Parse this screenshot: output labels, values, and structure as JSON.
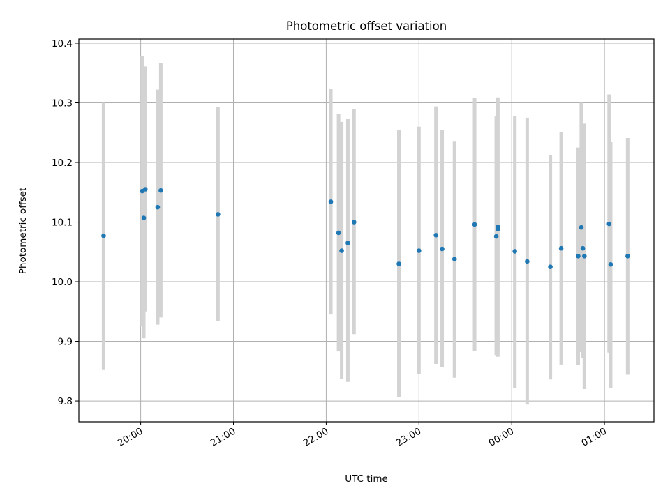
{
  "chart_data": {
    "type": "scatter",
    "title": "Photometric offset variation",
    "xlabel": "UTC time",
    "ylabel": "Photometric offset",
    "x_is_time": true,
    "x_tick_labels": [
      "20:00",
      "21:00",
      "22:00",
      "23:00",
      "00:00",
      "01:00"
    ],
    "y_tick_labels": [
      "9.8",
      "9.9",
      "10.0",
      "10.1",
      "10.2",
      "10.3",
      "10.4"
    ],
    "y_ticks": [
      9.8,
      9.9,
      10.0,
      10.1,
      10.2,
      10.3,
      10.4
    ],
    "xlim": [
      "19:20",
      "01:32"
    ],
    "ylim": [
      9.765,
      10.407
    ],
    "grid": true,
    "series": [
      {
        "color": "#1f77b4",
        "error_bar_color": "#d3d3d3",
        "points": [
          {
            "t": "19:36",
            "y": 10.077,
            "y_low": 9.853,
            "y_high": 10.3
          },
          {
            "t": "20:01",
            "y": 10.152,
            "y_low": 9.926,
            "y_high": 10.378
          },
          {
            "t": "20:02",
            "y": 10.107,
            "y_low": 9.905,
            "y_high": 10.309
          },
          {
            "t": "20:03",
            "y": 10.155,
            "y_low": 9.95,
            "y_high": 10.361
          },
          {
            "t": "20:11",
            "y": 10.125,
            "y_low": 9.928,
            "y_high": 10.322
          },
          {
            "t": "20:13",
            "y": 10.153,
            "y_low": 9.94,
            "y_high": 10.367
          },
          {
            "t": "20:50",
            "y": 10.113,
            "y_low": 9.934,
            "y_high": 10.293
          },
          {
            "t": "22:03",
            "y": 10.134,
            "y_low": 9.945,
            "y_high": 10.323
          },
          {
            "t": "22:08",
            "y": 10.082,
            "y_low": 9.883,
            "y_high": 10.281
          },
          {
            "t": "22:10",
            "y": 10.052,
            "y_low": 9.837,
            "y_high": 10.268
          },
          {
            "t": "22:14",
            "y": 10.065,
            "y_low": 9.832,
            "y_high": 10.273
          },
          {
            "t": "22:18",
            "y": 10.1,
            "y_low": 9.912,
            "y_high": 10.289
          },
          {
            "t": "22:47",
            "y": 10.03,
            "y_low": 9.806,
            "y_high": 10.255
          },
          {
            "t": "23:00",
            "y": 10.052,
            "y_low": 9.845,
            "y_high": 10.26
          },
          {
            "t": "23:11",
            "y": 10.078,
            "y_low": 9.862,
            "y_high": 10.294
          },
          {
            "t": "23:15",
            "y": 10.055,
            "y_low": 9.857,
            "y_high": 10.254
          },
          {
            "t": "23:23",
            "y": 10.038,
            "y_low": 9.839,
            "y_high": 10.236
          },
          {
            "t": "23:36",
            "y": 10.096,
            "y_low": 9.884,
            "y_high": 10.308
          },
          {
            "t": "23:50",
            "y": 10.076,
            "y_low": 9.877,
            "y_high": 10.277
          },
          {
            "t": "23:51",
            "y": 10.092,
            "y_low": 9.874,
            "y_high": 10.309
          },
          {
            "t": "23:51",
            "y": 10.088,
            "y_low": 9.88,
            "y_high": 10.297
          },
          {
            "t": "00:02",
            "y": 10.051,
            "y_low": 9.822,
            "y_high": 10.278
          },
          {
            "t": "00:10",
            "y": 10.034,
            "y_low": 9.794,
            "y_high": 10.275
          },
          {
            "t": "00:25",
            "y": 10.025,
            "y_low": 9.836,
            "y_high": 10.212
          },
          {
            "t": "00:32",
            "y": 10.056,
            "y_low": 9.861,
            "y_high": 10.251
          },
          {
            "t": "00:43",
            "y": 10.043,
            "y_low": 9.86,
            "y_high": 10.225
          },
          {
            "t": "00:45",
            "y": 10.091,
            "y_low": 9.882,
            "y_high": 10.3
          },
          {
            "t": "00:46",
            "y": 10.056,
            "y_low": 9.872,
            "y_high": 10.24
          },
          {
            "t": "00:47",
            "y": 10.043,
            "y_low": 9.82,
            "y_high": 10.265
          },
          {
            "t": "01:03",
            "y": 10.097,
            "y_low": 9.881,
            "y_high": 10.314
          },
          {
            "t": "01:04",
            "y": 10.029,
            "y_low": 9.822,
            "y_high": 10.235
          },
          {
            "t": "01:15",
            "y": 10.043,
            "y_low": 9.844,
            "y_high": 10.241
          }
        ]
      }
    ]
  }
}
